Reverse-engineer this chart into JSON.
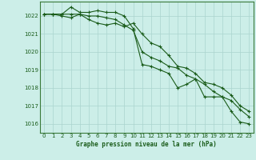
{
  "title": "Graphe pression niveau de la mer (hPa)",
  "bg_color": "#cceee8",
  "grid_color": "#aad4ce",
  "line_color": "#1a5c1a",
  "spine_color": "#3a7a3a",
  "x_ticks": [
    0,
    1,
    2,
    3,
    4,
    5,
    6,
    7,
    8,
    9,
    10,
    11,
    12,
    13,
    14,
    15,
    16,
    17,
    18,
    19,
    20,
    21,
    22,
    23
  ],
  "y_ticks": [
    1016,
    1017,
    1018,
    1019,
    1020,
    1021,
    1022
  ],
  "ylim": [
    1015.5,
    1022.8
  ],
  "xlim": [
    -0.5,
    23.5
  ],
  "series1": [
    1022.1,
    1022.1,
    1022.1,
    1022.5,
    1022.2,
    1022.2,
    1022.3,
    1022.2,
    1022.2,
    1022.0,
    1021.3,
    1019.3,
    1019.2,
    1019.0,
    1018.8,
    1018.0,
    1018.2,
    1018.5,
    1017.5,
    1017.5,
    1017.5,
    1016.7,
    1016.1,
    1016.0
  ],
  "series2": [
    1022.1,
    1022.1,
    1022.0,
    1021.9,
    1022.1,
    1021.8,
    1021.6,
    1021.5,
    1021.6,
    1021.4,
    1021.6,
    1021.0,
    1020.5,
    1020.3,
    1019.8,
    1019.2,
    1019.1,
    1018.8,
    1018.3,
    1018.2,
    1018.0,
    1017.6,
    1017.0,
    1016.7
  ],
  "series3": [
    1022.1,
    1022.1,
    1022.1,
    1022.1,
    1022.1,
    1022.0,
    1022.0,
    1021.9,
    1021.8,
    1021.5,
    1021.2,
    1020.0,
    1019.7,
    1019.5,
    1019.2,
    1019.1,
    1018.7,
    1018.5,
    1018.2,
    1017.8,
    1017.5,
    1017.3,
    1016.8,
    1016.4
  ],
  "tick_fontsize": 5.0,
  "label_fontsize": 5.5,
  "linewidth": 0.8,
  "markersize": 3.0
}
